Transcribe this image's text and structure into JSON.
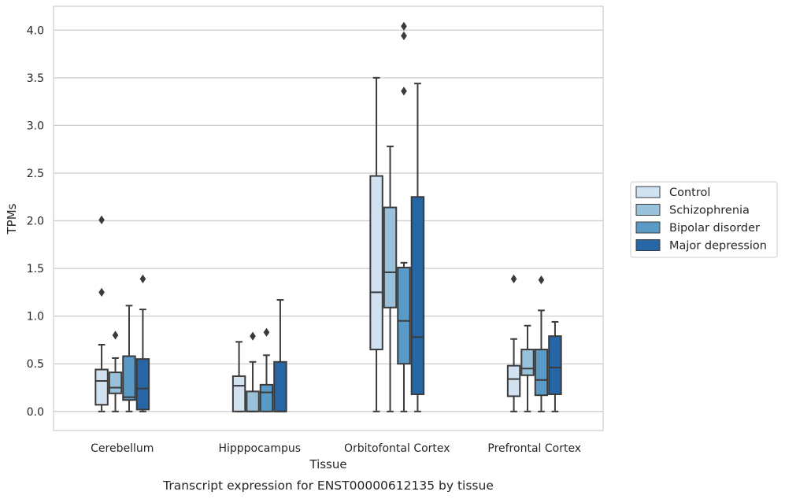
{
  "chart_data": {
    "type": "box",
    "xlabel": "Tissue",
    "ylabel": "TPMs",
    "caption": "Transcript expression for ENST00000612135 by tissue",
    "ylim": [
      -0.2,
      4.25
    ],
    "yticks": [
      0.0,
      0.5,
      1.0,
      1.5,
      2.0,
      2.5,
      3.0,
      3.5,
      4.0
    ],
    "ytick_labels": [
      "0.0",
      "0.5",
      "1.0",
      "1.5",
      "2.0",
      "2.5",
      "3.0",
      "3.5",
      "4.0"
    ],
    "grid": true,
    "legend_position": "right",
    "categories": [
      "Cerebellum",
      "Hipppocampus",
      "Orbitofontal Cortex",
      "Prefrontal Cortex"
    ],
    "series": [
      {
        "name": "Control",
        "color": "#d1e1f0",
        "boxes": [
          {
            "whislo": 0.0,
            "q1": 0.07,
            "med": 0.32,
            "q3": 0.44,
            "whishi": 0.7,
            "fliers": [
              1.25,
              2.01
            ]
          },
          {
            "whislo": 0.0,
            "q1": 0.0,
            "med": 0.27,
            "q3": 0.37,
            "whishi": 0.73,
            "fliers": []
          },
          {
            "whislo": 0.0,
            "q1": 0.65,
            "med": 1.25,
            "q3": 2.47,
            "whishi": 3.5,
            "fliers": []
          },
          {
            "whislo": 0.0,
            "q1": 0.16,
            "med": 0.34,
            "q3": 0.48,
            "whishi": 0.76,
            "fliers": [
              1.39
            ]
          }
        ]
      },
      {
        "name": "Schizophrenia",
        "color": "#9ac1da",
        "boxes": [
          {
            "whislo": 0.0,
            "q1": 0.19,
            "med": 0.25,
            "q3": 0.41,
            "whishi": 0.56,
            "fliers": [
              0.8
            ]
          },
          {
            "whislo": 0.0,
            "q1": 0.0,
            "med": 0.0,
            "q3": 0.21,
            "whishi": 0.52,
            "fliers": [
              0.79
            ]
          },
          {
            "whislo": 0.0,
            "q1": 1.09,
            "med": 1.46,
            "q3": 2.14,
            "whishi": 2.78,
            "fliers": []
          },
          {
            "whislo": 0.0,
            "q1": 0.38,
            "med": 0.45,
            "q3": 0.65,
            "whishi": 0.9,
            "fliers": []
          }
        ]
      },
      {
        "name": "Bipolar disorder",
        "color": "#5a9ac6",
        "boxes": [
          {
            "whislo": 0.0,
            "q1": 0.12,
            "med": 0.15,
            "q3": 0.58,
            "whishi": 1.11,
            "fliers": []
          },
          {
            "whislo": 0.0,
            "q1": 0.0,
            "med": 0.2,
            "q3": 0.28,
            "whishi": 0.59,
            "fliers": [
              0.83
            ]
          },
          {
            "whislo": 0.0,
            "q1": 0.5,
            "med": 0.95,
            "q3": 1.51,
            "whishi": 1.56,
            "fliers": [
              3.36,
              3.94,
              4.04
            ]
          },
          {
            "whislo": 0.0,
            "q1": 0.17,
            "med": 0.33,
            "q3": 0.65,
            "whishi": 1.06,
            "fliers": [
              1.38
            ]
          }
        ]
      },
      {
        "name": "Major depression",
        "color": "#2766a6",
        "boxes": [
          {
            "whislo": 0.0,
            "q1": 0.02,
            "med": 0.24,
            "q3": 0.55,
            "whishi": 1.07,
            "fliers": [
              1.39
            ]
          },
          {
            "whislo": 0.0,
            "q1": 0.0,
            "med": 0.0,
            "q3": 0.52,
            "whishi": 1.17,
            "fliers": []
          },
          {
            "whislo": 0.0,
            "q1": 0.18,
            "med": 0.78,
            "q3": 2.25,
            "whishi": 3.44,
            "fliers": []
          },
          {
            "whislo": 0.0,
            "q1": 0.18,
            "med": 0.46,
            "q3": 0.79,
            "whishi": 0.94,
            "fliers": []
          }
        ]
      }
    ]
  }
}
